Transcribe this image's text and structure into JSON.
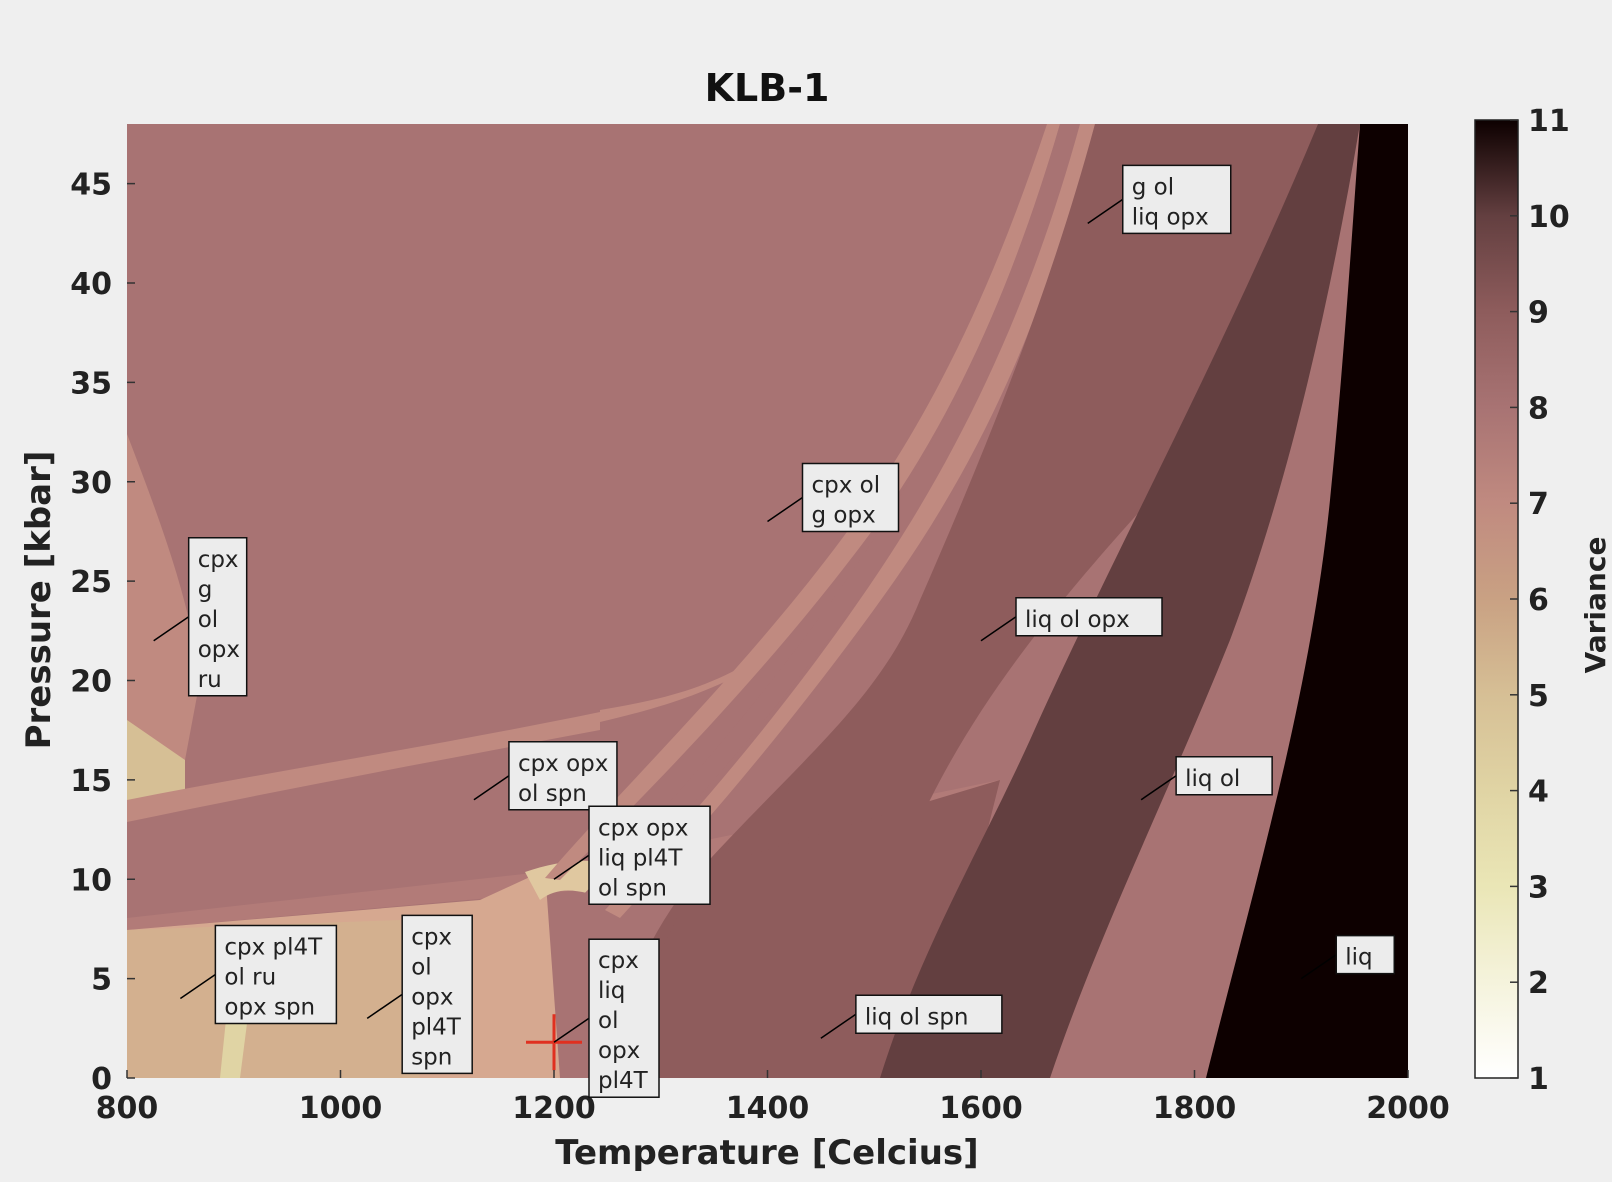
{
  "chart_data": {
    "type": "heatmap",
    "title": "KLB-1",
    "xlabel": "Temperature [Celcius]",
    "ylabel": "Pressure [kbar]",
    "xlim": [
      800,
      2000
    ],
    "ylim": [
      0,
      48
    ],
    "xticks": [
      "800",
      "1000",
      "1200",
      "1400",
      "1600",
      "1800",
      "2000"
    ],
    "yticks": [
      "0",
      "5",
      "10",
      "15",
      "20",
      "25",
      "30",
      "35",
      "40",
      "45"
    ],
    "colorbar": {
      "label": "Variance",
      "min": 1,
      "max": 11,
      "ticks": [
        "1",
        "2",
        "3",
        "4",
        "5",
        "6",
        "7",
        "8",
        "9",
        "10",
        "11"
      ],
      "colormap": "pink-reversed",
      "colors": [
        "#ffffff",
        "#f5f3dc",
        "#eae6b6",
        "#e0d4a4",
        "#d6bf95",
        "#c9a183",
        "#c08a80",
        "#a87373",
        "#8e5c5c",
        "#633f40",
        "#0d0000"
      ]
    },
    "marker": {
      "temperature": 1200,
      "pressure": 1.8,
      "color": "#e03020",
      "shape": "plus"
    },
    "field_labels": [
      {
        "text": [
          "g ol",
          "liq opx"
        ],
        "anchor": [
          1700,
          43
        ]
      },
      {
        "text": [
          "cpx ol",
          "g opx"
        ],
        "anchor": [
          1400,
          28
        ]
      },
      {
        "text": [
          "cpx",
          "g",
          "ol",
          "opx",
          "ru"
        ],
        "anchor": [
          825,
          22
        ]
      },
      {
        "text": [
          "liq ol opx"
        ],
        "anchor": [
          1600,
          22
        ]
      },
      {
        "text": [
          "cpx opx",
          "ol spn"
        ],
        "anchor": [
          1125,
          14
        ]
      },
      {
        "text": [
          "liq ol"
        ],
        "anchor": [
          1750,
          14
        ]
      },
      {
        "text": [
          "cpx opx",
          "liq pl4T",
          "ol spn"
        ],
        "anchor": [
          1200,
          10
        ]
      },
      {
        "text": [
          "cpx pl4T",
          "ol ru",
          "opx spn"
        ],
        "anchor": [
          850,
          4
        ]
      },
      {
        "text": [
          "cpx",
          "ol",
          "opx",
          "pl4T",
          "spn"
        ],
        "anchor": [
          1025,
          3
        ]
      },
      {
        "text": [
          "cpx",
          "liq",
          "ol",
          "opx",
          "pl4T"
        ],
        "anchor": [
          1200,
          1.8
        ]
      },
      {
        "text": [
          "liq ol spn"
        ],
        "anchor": [
          1450,
          2
        ]
      },
      {
        "text": [
          "liq"
        ],
        "anchor": [
          1900,
          5
        ]
      }
    ]
  }
}
